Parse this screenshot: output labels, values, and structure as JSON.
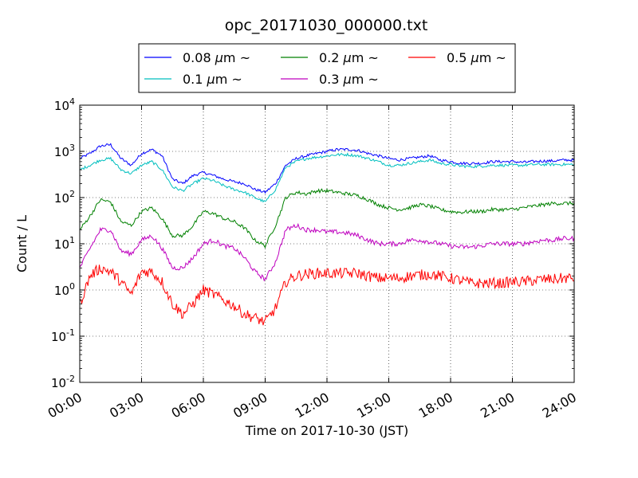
{
  "chart_data": {
    "type": "line",
    "title": "opc_20171030_000000.txt",
    "xlabel": "Time on 2017-10-30 (JST)",
    "ylabel": "Count / L",
    "yscale": "log",
    "ylim": [
      0.01,
      10000
    ],
    "xlim": [
      "00:00",
      "24:00"
    ],
    "grid": true,
    "legend_position": "top",
    "x_ticks": [
      "00:00",
      "03:00",
      "06:00",
      "09:00",
      "12:00",
      "15:00",
      "18:00",
      "21:00",
      "24:00"
    ],
    "y_ticks": [
      {
        "base": "10",
        "exp": "-2",
        "value": 0.01
      },
      {
        "base": "10",
        "exp": "-1",
        "value": 0.1
      },
      {
        "base": "10",
        "exp": "0",
        "value": 1
      },
      {
        "base": "10",
        "exp": "1",
        "value": 10
      },
      {
        "base": "10",
        "exp": "2",
        "value": 100
      },
      {
        "base": "10",
        "exp": "3",
        "value": 1000
      },
      {
        "base": "10",
        "exp": "4",
        "value": 10000
      }
    ],
    "x": [
      "00:00",
      "00:30",
      "01:00",
      "01:30",
      "02:00",
      "02:30",
      "03:00",
      "03:30",
      "04:00",
      "04:30",
      "05:00",
      "05:30",
      "06:00",
      "06:30",
      "07:00",
      "07:30",
      "08:00",
      "08:30",
      "09:00",
      "09:30",
      "10:00",
      "10:30",
      "11:00",
      "11:30",
      "12:00",
      "12:30",
      "13:00",
      "13:30",
      "14:00",
      "14:30",
      "15:00",
      "15:30",
      "16:00",
      "16:30",
      "17:00",
      "17:30",
      "18:00",
      "18:30",
      "19:00",
      "19:30",
      "20:00",
      "20:30",
      "21:00",
      "21:30",
      "22:00",
      "22:30",
      "23:00",
      "23:30",
      "24:00"
    ],
    "series": [
      {
        "name": "0.08 μm ~",
        "color": "#0000ff",
        "noise": 0.03,
        "values": [
          700,
          900,
          1300,
          1400,
          700,
          500,
          900,
          1100,
          800,
          250,
          200,
          300,
          350,
          300,
          250,
          220,
          200,
          150,
          130,
          200,
          500,
          700,
          800,
          900,
          1000,
          1100,
          1100,
          1050,
          900,
          800,
          700,
          650,
          700,
          750,
          800,
          650,
          600,
          550,
          550,
          550,
          600,
          600,
          600,
          580,
          600,
          620,
          620,
          650,
          650
        ]
      },
      {
        "name": "0.1 μm ~",
        "color": "#00bfbf",
        "noise": 0.03,
        "values": [
          400,
          500,
          650,
          700,
          400,
          330,
          500,
          600,
          400,
          170,
          140,
          200,
          260,
          230,
          180,
          150,
          130,
          100,
          80,
          150,
          450,
          600,
          700,
          750,
          800,
          850,
          850,
          800,
          700,
          600,
          500,
          500,
          550,
          600,
          650,
          550,
          520,
          480,
          470,
          480,
          500,
          500,
          500,
          500,
          520,
          520,
          520,
          520,
          520
        ]
      },
      {
        "name": "0.2 μm ~",
        "color": "#008000",
        "noise": 0.04,
        "values": [
          20,
          40,
          90,
          80,
          30,
          25,
          50,
          60,
          35,
          15,
          15,
          25,
          50,
          45,
          35,
          30,
          22,
          12,
          9,
          25,
          100,
          130,
          120,
          140,
          140,
          130,
          120,
          110,
          90,
          70,
          60,
          55,
          60,
          70,
          65,
          55,
          50,
          48,
          50,
          50,
          55,
          55,
          55,
          60,
          65,
          70,
          75,
          75,
          75
        ]
      },
      {
        "name": "0.3 μm ~",
        "color": "#bf00bf",
        "noise": 0.05,
        "values": [
          3,
          8,
          20,
          20,
          7,
          6,
          12,
          15,
          8,
          3,
          3,
          5,
          10,
          12,
          9,
          8,
          5,
          2.5,
          1.7,
          4,
          20,
          25,
          20,
          20,
          18,
          18,
          17,
          15,
          12,
          10,
          10,
          10,
          12,
          12,
          11,
          10,
          9,
          8.5,
          8.5,
          9,
          10,
          10,
          10,
          10,
          11,
          12,
          12,
          13,
          13
        ]
      },
      {
        "name": "0.5 μm ~",
        "color": "#ff0000",
        "noise": 0.12,
        "values": [
          0.5,
          2,
          3,
          2.5,
          1.5,
          0.8,
          2.5,
          2.5,
          1.5,
          0.5,
          0.3,
          0.5,
          1,
          0.8,
          0.6,
          0.45,
          0.3,
          0.25,
          0.2,
          0.4,
          1.5,
          2,
          2.2,
          2.3,
          2.3,
          2.3,
          2.3,
          2.3,
          2,
          1.8,
          1.8,
          1.8,
          2,
          2.1,
          2.2,
          2,
          1.8,
          1.6,
          1.4,
          1.4,
          1.4,
          1.4,
          1.5,
          1.5,
          1.6,
          1.7,
          1.7,
          1.8,
          1.8
        ]
      }
    ],
    "legend": {
      "entries": [
        {
          "label": "0.08",
          "unit": "μm",
          "tilde": "~",
          "series": 0
        },
        {
          "label": "0.1",
          "unit": "μm",
          "tilde": "~",
          "series": 1
        },
        {
          "label": "0.2",
          "unit": "μm",
          "tilde": "~",
          "series": 2
        },
        {
          "label": "0.3",
          "unit": "μm",
          "tilde": "~",
          "series": 3
        },
        {
          "label": "0.5",
          "unit": "μm",
          "tilde": "~",
          "series": 4
        }
      ]
    }
  }
}
